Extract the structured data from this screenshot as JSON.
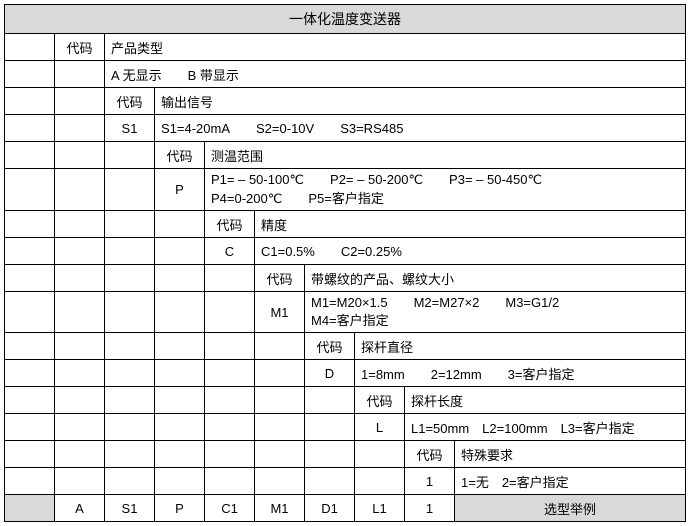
{
  "title": "一体化温度变送器",
  "labels": {
    "code": "代码",
    "product_type": "产品类型",
    "output_signal": "输出信号",
    "temp_range": "测温范围",
    "accuracy": "精度",
    "thread_size": "带螺纹的产品、螺纹大小",
    "probe_diameter": "探杆直径",
    "probe_length": "探杆长度",
    "special_req": "特殊要求",
    "example": "选型举例"
  },
  "values": {
    "product_type_code": "",
    "product_type_opts": "A 无显示  B 带显示",
    "output_code": "S1",
    "output_opts": "S1=4-20mA  S2=0-10V  S3=RS485",
    "temp_code": "P",
    "temp_opts": "P1= – 50-100℃  P2= – 50-200℃  P3= – 50-450℃\nP4=0-200℃  P5=客户指定",
    "accuracy_code": "C",
    "accuracy_opts": "C1=0.5%  C2=0.25%",
    "thread_code": "M1",
    "thread_opts": "M1=M20×1.5  M2=M27×2  M3=G1/2\nM4=客户指定",
    "diameter_code": "D",
    "diameter_opts": "1=8mm  2=12mm  3=客户指定",
    "length_code": "L",
    "length_opts": "L1=50mm L2=100mm L3=客户指定",
    "special_code": "1",
    "special_opts": "1=无 2=客户指定"
  },
  "footer": {
    "c1": "A",
    "c2": "S1",
    "c3": "P",
    "c4": "C1",
    "c5": "M1",
    "c6": "D1",
    "c7": "L1",
    "c8": "1"
  }
}
